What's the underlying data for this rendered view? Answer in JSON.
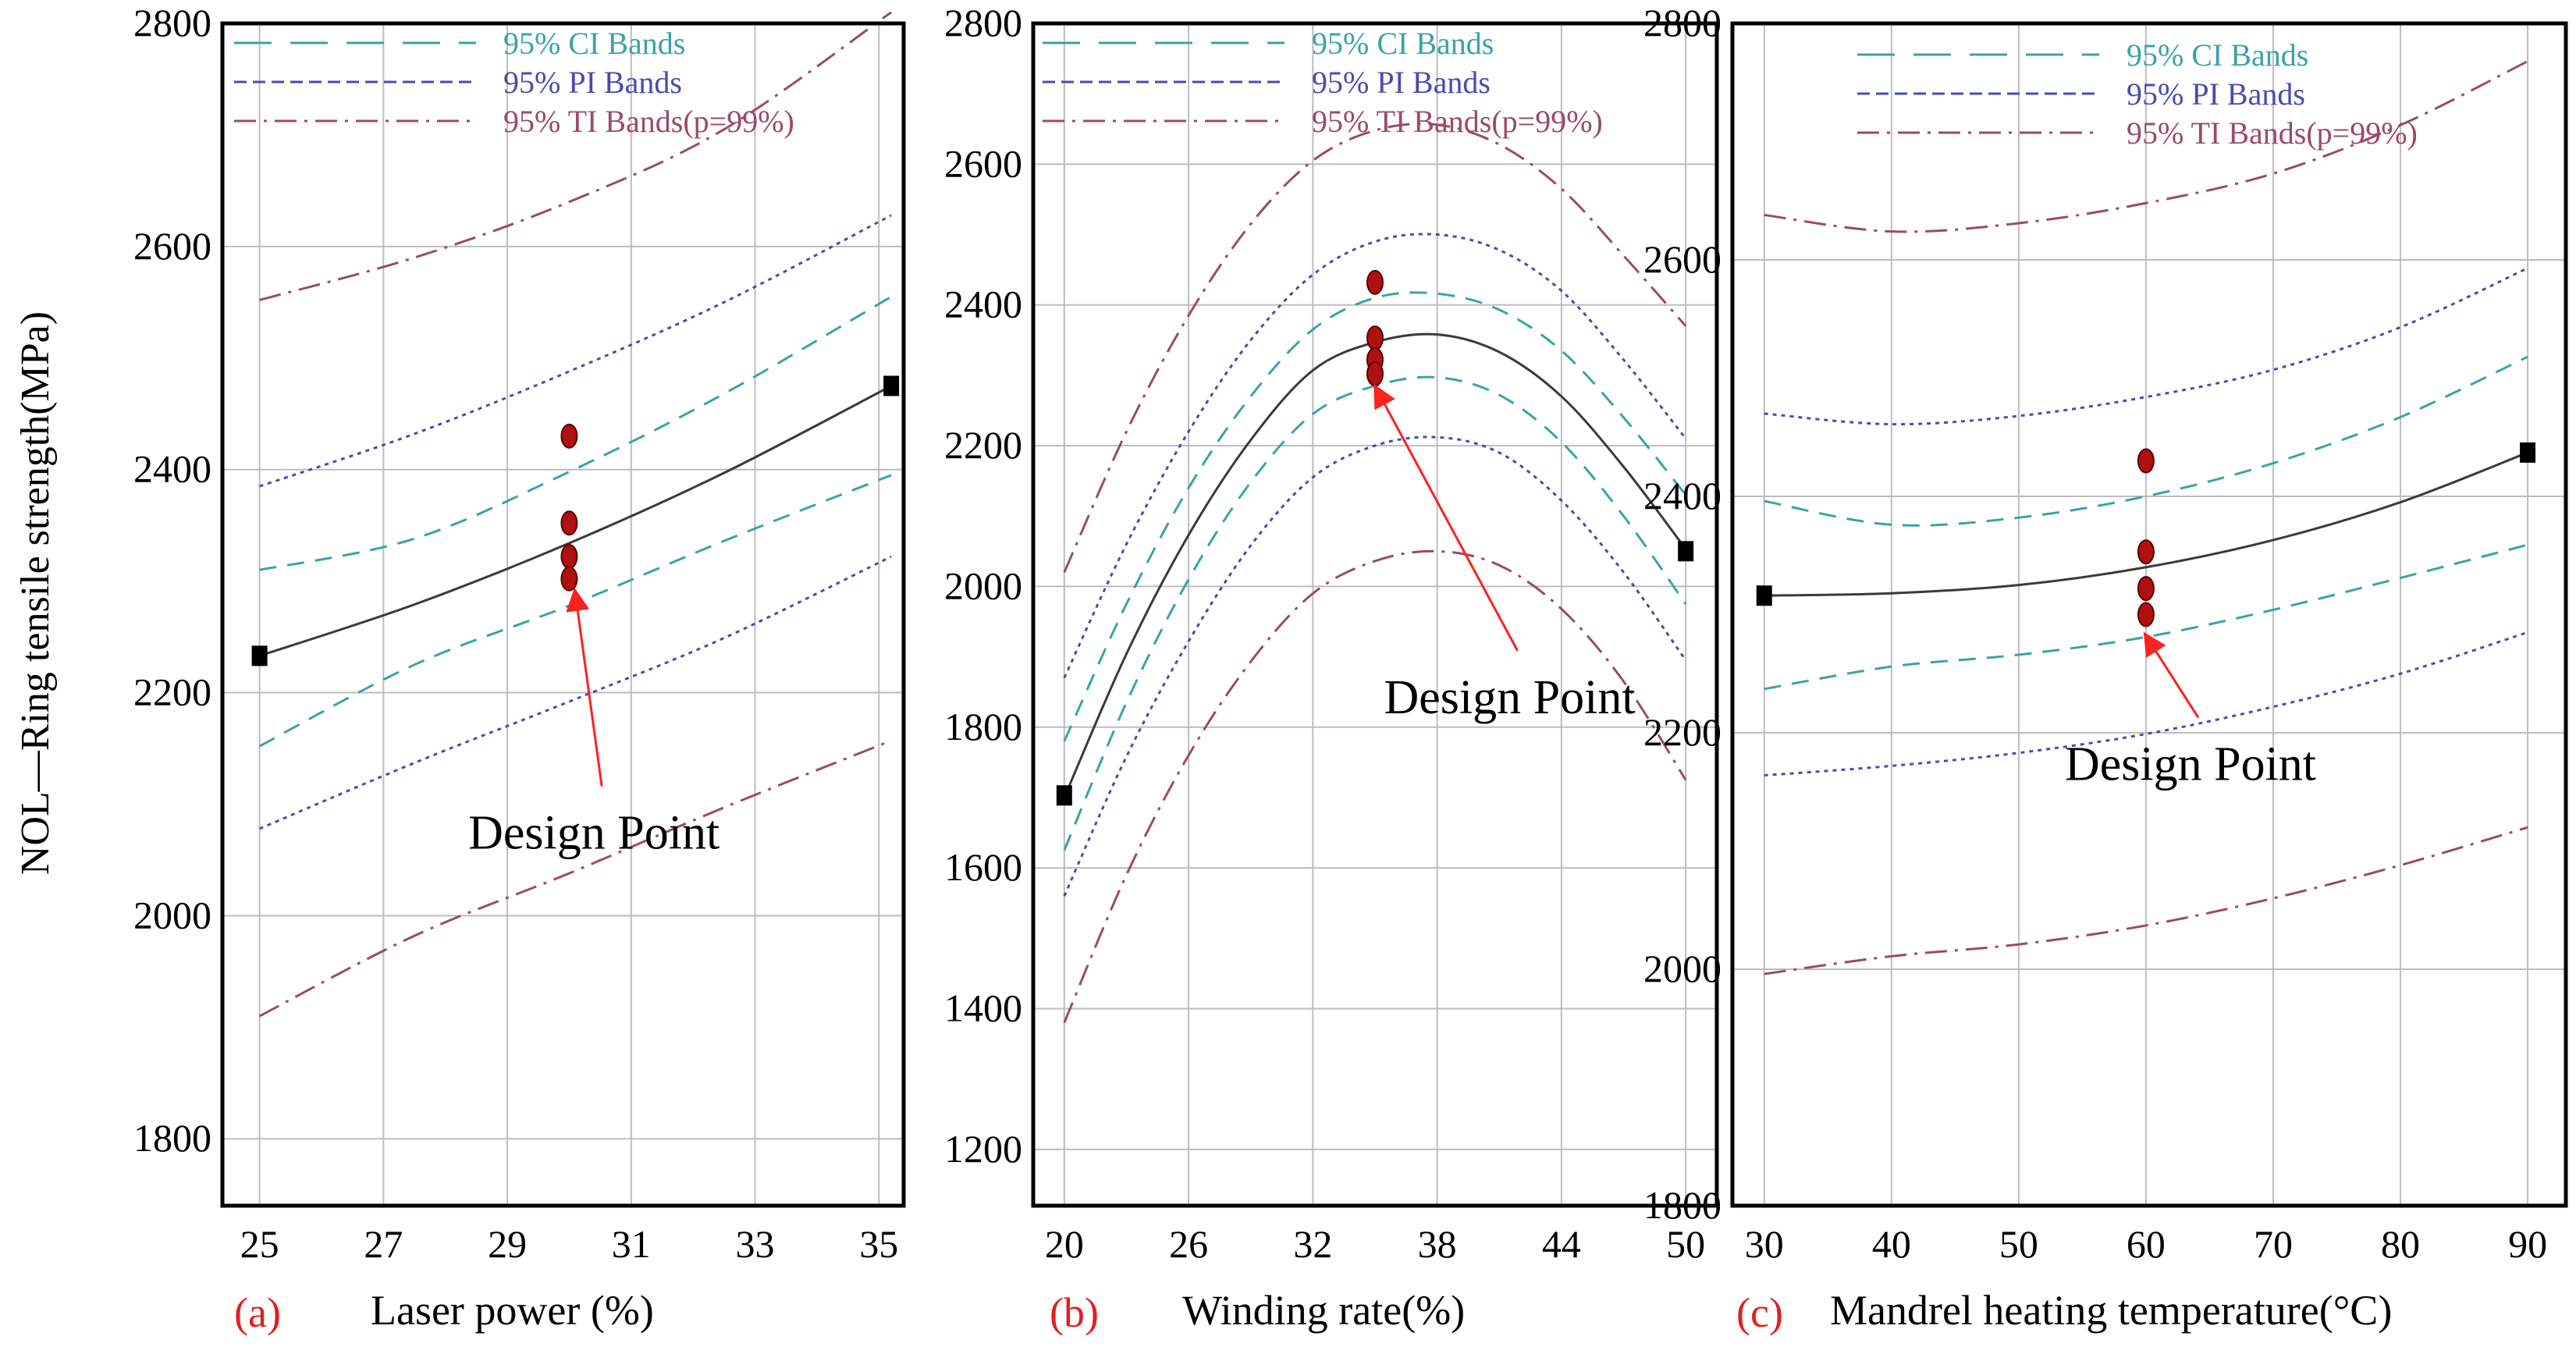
{
  "figure": {
    "ylabel": "NOL—Ring tensile strength(MPa)",
    "colors": {
      "fit": "#3a3a3a",
      "ci": "#3aa3a6",
      "pi": "#4a4ab0",
      "ti": "#9a4a6a",
      "point": "#b01010",
      "arrow": "#ff2020",
      "grid": "#bdbdbd",
      "panel_label": "#e02020"
    }
  },
  "chart_data": [
    {
      "type": "line",
      "panel_label": "(a)",
      "xlabel": "Laser  power (%)",
      "ylabel": "NOL—Ring tensile strength(MPa)",
      "xlim": [
        24.4,
        35.4
      ],
      "ylim": [
        1740,
        2800
      ],
      "xticks": [
        25,
        27,
        29,
        31,
        33,
        35
      ],
      "xtick_labels": [
        "25",
        "27",
        "29",
        "31",
        "33",
        "35"
      ],
      "yticks": [
        1800,
        2000,
        2200,
        2400,
        2600,
        2800
      ],
      "ytick_labels": [
        "1800",
        "2000",
        "2200",
        "2400",
        "2600",
        "2800"
      ],
      "legend": [
        {
          "key": "ci",
          "label": "95% CI Bands"
        },
        {
          "key": "pi",
          "label": "95% PI Bands"
        },
        {
          "key": "ti",
          "label": "95% TI Bands(p=99%)"
        }
      ],
      "series": [
        {
          "name": "Fit",
          "style": "fit",
          "x": [
            25,
            27.5,
            30,
            32.5,
            35.2
          ],
          "y": [
            2233,
            2279,
            2334,
            2397,
            2475
          ]
        },
        {
          "name": "95% CI upper",
          "style": "ci",
          "x": [
            25,
            27.5,
            30,
            32.5,
            35.2
          ],
          "y": [
            2310,
            2338,
            2398,
            2468,
            2555
          ]
        },
        {
          "name": "95% CI lower",
          "style": "ci",
          "x": [
            25,
            27.5,
            30,
            32.5,
            35.2
          ],
          "y": [
            2152,
            2225,
            2278,
            2336,
            2395
          ]
        },
        {
          "name": "95% PI upper",
          "style": "pi",
          "x": [
            25,
            27.5,
            30,
            32.5,
            35.2
          ],
          "y": [
            2385,
            2432,
            2488,
            2550,
            2628
          ]
        },
        {
          "name": "95% PI lower",
          "style": "pi",
          "x": [
            25,
            27.5,
            30,
            32.5,
            35.2
          ],
          "y": [
            2078,
            2137,
            2192,
            2249,
            2322
          ]
        },
        {
          "name": "95% TI upper",
          "style": "ti",
          "x": [
            25,
            27.5,
            30,
            32.5,
            35.2
          ],
          "y": [
            2552,
            2590,
            2640,
            2705,
            2810
          ]
        },
        {
          "name": "95% TI lower",
          "style": "ti",
          "x": [
            25,
            27.5,
            30,
            32.5,
            35.2
          ],
          "y": [
            1910,
            1982,
            2038,
            2097,
            2157
          ]
        }
      ],
      "design_points": [
        {
          "x": 30,
          "y": 2430
        },
        {
          "x": 30,
          "y": 2352
        },
        {
          "x": 30,
          "y": 2322
        },
        {
          "x": 30,
          "y": 2302
        }
      ],
      "endpoint_markers": [
        {
          "x": 25,
          "y": 2233
        },
        {
          "x": 35.2,
          "y": 2475
        }
      ],
      "annotation": {
        "text": "Design Point",
        "text_x": 30.4,
        "text_y": 2060,
        "arrow_to_x": 30.1,
        "arrow_to_y": 2295
      }
    },
    {
      "type": "line",
      "panel_label": "(b)",
      "xlabel": "Winding  rate(%)",
      "ylabel": "",
      "xlim": [
        18.5,
        51.5
      ],
      "ylim": [
        1120,
        2800
      ],
      "xticks": [
        20,
        26,
        32,
        38,
        44,
        50
      ],
      "xtick_labels": [
        "20",
        "26",
        "32",
        "38",
        "44",
        "50"
      ],
      "yticks": [
        1200,
        1400,
        1600,
        1800,
        2000,
        2200,
        2400,
        2600,
        2800
      ],
      "ytick_labels": [
        "1200",
        "1400",
        "1600",
        "1800",
        "2000",
        "2200",
        "2400",
        "2600",
        "2800"
      ],
      "legend": [
        {
          "key": "ci",
          "label": "95% CI Bands"
        },
        {
          "key": "pi",
          "label": "95% PI Bands"
        },
        {
          "key": "ti",
          "label": "95% TI Bands(p=99%)"
        }
      ],
      "series": [
        {
          "name": "Fit",
          "style": "fit",
          "x": [
            20,
            23,
            26,
            29,
            32,
            35,
            38,
            41,
            44,
            47,
            50
          ],
          "y": [
            1700,
            1904,
            2073,
            2208,
            2307,
            2347,
            2358,
            2333,
            2270,
            2170,
            2053
          ]
        },
        {
          "name": "95% CI upper",
          "style": "ci",
          "x": [
            20,
            23,
            26,
            29,
            32,
            35,
            38,
            41,
            44,
            47,
            50
          ],
          "y": [
            1780,
            1975,
            2140,
            2270,
            2365,
            2410,
            2416,
            2393,
            2335,
            2240,
            2130
          ]
        },
        {
          "name": "95% CI lower",
          "style": "ci",
          "x": [
            20,
            23,
            26,
            29,
            32,
            35,
            38,
            41,
            44,
            47,
            50
          ],
          "y": [
            1625,
            1835,
            2010,
            2148,
            2245,
            2285,
            2297,
            2272,
            2205,
            2100,
            1975
          ]
        },
        {
          "name": "95% PI upper",
          "style": "pi",
          "x": [
            20,
            23,
            26,
            29,
            32,
            35,
            38,
            41,
            44,
            47,
            50
          ],
          "y": [
            1870,
            2060,
            2220,
            2350,
            2443,
            2490,
            2500,
            2478,
            2420,
            2322,
            2210
          ]
        },
        {
          "name": "95% PI lower",
          "style": "pi",
          "x": [
            20,
            23,
            26,
            29,
            32,
            35,
            38,
            41,
            44,
            47,
            50
          ],
          "y": [
            1560,
            1758,
            1922,
            2058,
            2155,
            2200,
            2212,
            2190,
            2122,
            2020,
            1895
          ]
        },
        {
          "name": "95% TI upper",
          "style": "ti",
          "x": [
            20,
            23,
            26,
            29,
            32,
            35,
            38,
            41,
            44,
            47,
            50
          ],
          "y": [
            2020,
            2220,
            2385,
            2515,
            2605,
            2648,
            2656,
            2628,
            2565,
            2470,
            2370
          ]
        },
        {
          "name": "95% TI lower",
          "style": "ti",
          "x": [
            20,
            23,
            26,
            29,
            32,
            35,
            38,
            41,
            44,
            47,
            50
          ],
          "y": [
            1380,
            1590,
            1760,
            1893,
            1990,
            2036,
            2050,
            2030,
            1968,
            1865,
            1725
          ]
        }
      ],
      "design_points": [
        {
          "x": 35,
          "y": 2432
        },
        {
          "x": 35,
          "y": 2353
        },
        {
          "x": 35,
          "y": 2322
        },
        {
          "x": 35,
          "y": 2302
        }
      ],
      "endpoint_markers": [
        {
          "x": 20,
          "y": 1703
        },
        {
          "x": 50,
          "y": 2050
        }
      ],
      "annotation": {
        "text": "Design Point",
        "text_x": 41.5,
        "text_y": 1820,
        "arrow_to_x": 35.1,
        "arrow_to_y": 2290
      }
    },
    {
      "type": "line",
      "panel_label": "(c)",
      "xlabel": "Mandrel heating temperature(°C)",
      "ylabel": "",
      "xlim": [
        27.5,
        93
      ],
      "ylim": [
        1800,
        2800
      ],
      "xticks": [
        30,
        40,
        50,
        60,
        70,
        80,
        90
      ],
      "xtick_labels": [
        "30",
        "40",
        "50",
        "60",
        "70",
        "80",
        "90"
      ],
      "yticks": [
        1800,
        2000,
        2200,
        2400,
        2600,
        2800
      ],
      "ytick_labels": [
        "1800",
        "2000",
        "2200",
        "2400",
        "2600",
        "2800"
      ],
      "legend": [
        {
          "key": "ci",
          "label": "95% CI Bands"
        },
        {
          "key": "pi",
          "label": "95% PI Bands"
        },
        {
          "key": "ti",
          "label": "95% TI Bands(p=99%)"
        }
      ],
      "series": [
        {
          "name": "Fit",
          "style": "fit",
          "x": [
            30,
            40,
            50,
            60,
            70,
            80,
            90
          ],
          "y": [
            2316,
            2318,
            2325,
            2340,
            2363,
            2395,
            2437
          ]
        },
        {
          "name": "95% CI upper",
          "style": "ci",
          "x": [
            30,
            40,
            50,
            60,
            70,
            80,
            90
          ],
          "y": [
            2396,
            2376,
            2382,
            2400,
            2428,
            2467,
            2518
          ]
        },
        {
          "name": "95% CI lower",
          "style": "ci",
          "x": [
            30,
            40,
            50,
            60,
            70,
            80,
            90
          ],
          "y": [
            2237,
            2256,
            2266,
            2281,
            2304,
            2331,
            2359
          ]
        },
        {
          "name": "95% PI upper",
          "style": "pi",
          "x": [
            30,
            40,
            50,
            60,
            70,
            80,
            90
          ],
          "y": [
            2470,
            2461,
            2468,
            2484,
            2507,
            2543,
            2593
          ]
        },
        {
          "name": "95% PI lower",
          "style": "pi",
          "x": [
            30,
            40,
            50,
            60,
            70,
            80,
            90
          ],
          "y": [
            2164,
            2172,
            2183,
            2199,
            2222,
            2250,
            2285
          ]
        },
        {
          "name": "95% TI upper",
          "style": "ti",
          "x": [
            30,
            40,
            50,
            60,
            70,
            80,
            90
          ],
          "y": [
            2638,
            2624,
            2631,
            2648,
            2673,
            2714,
            2768
          ]
        },
        {
          "name": "95% TI lower",
          "style": "ti",
          "x": [
            30,
            40,
            50,
            60,
            70,
            80,
            90
          ],
          "y": [
            1996,
            2011,
            2021,
            2037,
            2060,
            2088,
            2120
          ]
        }
      ],
      "design_points": [
        {
          "x": 60,
          "y": 2430
        },
        {
          "x": 60,
          "y": 2353
        },
        {
          "x": 60,
          "y": 2322
        },
        {
          "x": 60,
          "y": 2300
        }
      ],
      "endpoint_markers": [
        {
          "x": 30,
          "y": 2316
        },
        {
          "x": 90,
          "y": 2437
        }
      ],
      "annotation": {
        "text": "Design Point",
        "text_x": 63.5,
        "text_y": 2160,
        "arrow_to_x": 60.1,
        "arrow_to_y": 2287
      }
    }
  ]
}
